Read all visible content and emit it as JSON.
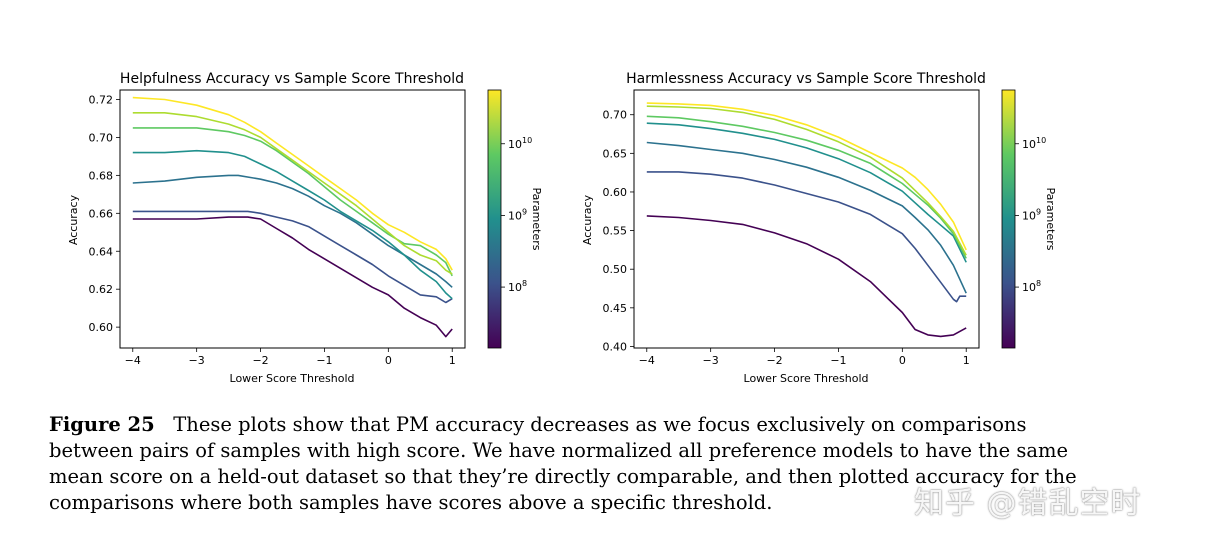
{
  "chart_data": [
    {
      "type": "line",
      "title": "Helpfulness Accuracy vs Sample Score Threshold",
      "xlabel": "Lower Score Threshold",
      "ylabel": "Accuracy",
      "xlim": [
        -4.2,
        1.2
      ],
      "ylim": [
        0.589,
        0.725
      ],
      "xticks": [
        -4,
        -3,
        -2,
        -1,
        0,
        1
      ],
      "yticks": [
        0.6,
        0.62,
        0.64,
        0.66,
        0.68,
        0.7,
        0.72
      ],
      "series": [
        {
          "color": "#440154",
          "x": [
            -4,
            -3.5,
            -3,
            -2.5,
            -2.2,
            -2,
            -1.75,
            -1.5,
            -1.25,
            -1,
            -0.75,
            -0.5,
            -0.25,
            0,
            0.25,
            0.5,
            0.75,
            0.9,
            1
          ],
          "y": [
            0.657,
            0.657,
            0.657,
            0.658,
            0.658,
            0.657,
            0.652,
            0.647,
            0.641,
            0.636,
            0.631,
            0.626,
            0.621,
            0.617,
            0.61,
            0.605,
            0.601,
            0.595,
            0.599
          ]
        },
        {
          "color": "#3b528b",
          "x": [
            -4,
            -3.5,
            -3,
            -2.5,
            -2.2,
            -2,
            -1.75,
            -1.5,
            -1.25,
            -1,
            -0.75,
            -0.5,
            -0.25,
            0,
            0.25,
            0.5,
            0.75,
            0.9,
            1
          ],
          "y": [
            0.661,
            0.661,
            0.661,
            0.661,
            0.661,
            0.66,
            0.658,
            0.656,
            0.653,
            0.648,
            0.643,
            0.638,
            0.633,
            0.627,
            0.622,
            0.617,
            0.616,
            0.613,
            0.615
          ]
        },
        {
          "color": "#2c728e",
          "x": [
            -4,
            -3.5,
            -3,
            -2.5,
            -2.35,
            -2,
            -1.75,
            -1.5,
            -1.25,
            -1,
            -0.75,
            -0.5,
            -0.25,
            0,
            0.25,
            0.5,
            0.75,
            0.9,
            1
          ],
          "y": [
            0.676,
            0.677,
            0.679,
            0.68,
            0.68,
            0.678,
            0.676,
            0.673,
            0.669,
            0.664,
            0.66,
            0.655,
            0.649,
            0.643,
            0.638,
            0.633,
            0.628,
            0.624,
            0.621
          ]
        },
        {
          "color": "#21908d",
          "x": [
            -4,
            -3.5,
            -3,
            -2.5,
            -2.25,
            -2,
            -1.75,
            -1.5,
            -1.25,
            -1,
            -0.75,
            -0.5,
            -0.25,
            0,
            0.25,
            0.5,
            0.75,
            0.9,
            1
          ],
          "y": [
            0.692,
            0.692,
            0.693,
            0.692,
            0.69,
            0.686,
            0.682,
            0.677,
            0.672,
            0.667,
            0.661,
            0.656,
            0.651,
            0.645,
            0.638,
            0.63,
            0.624,
            0.618,
            0.615
          ]
        },
        {
          "color": "#5ec962",
          "x": [
            -4,
            -3.5,
            -3,
            -2.5,
            -2.25,
            -2,
            -1.75,
            -1.5,
            -1.25,
            -1,
            -0.75,
            -0.5,
            -0.25,
            0,
            0.25,
            0.5,
            0.75,
            0.9,
            1
          ],
          "y": [
            0.705,
            0.705,
            0.705,
            0.703,
            0.701,
            0.698,
            0.693,
            0.687,
            0.681,
            0.674,
            0.667,
            0.661,
            0.655,
            0.649,
            0.644,
            0.643,
            0.638,
            0.634,
            0.627
          ]
        },
        {
          "color": "#addc30",
          "x": [
            -4,
            -3.5,
            -3,
            -2.5,
            -2.25,
            -2,
            -1.75,
            -1.5,
            -1.25,
            -1,
            -0.75,
            -0.5,
            -0.25,
            0,
            0.25,
            0.5,
            0.75,
            0.9,
            1
          ],
          "y": [
            0.713,
            0.713,
            0.711,
            0.707,
            0.704,
            0.7,
            0.694,
            0.688,
            0.682,
            0.676,
            0.67,
            0.664,
            0.657,
            0.65,
            0.643,
            0.638,
            0.635,
            0.63,
            0.628
          ]
        },
        {
          "color": "#fde725",
          "x": [
            -4,
            -3.5,
            -3,
            -2.5,
            -2.25,
            -2,
            -1.75,
            -1.5,
            -1.25,
            -1,
            -0.75,
            -0.5,
            -0.25,
            0,
            0.25,
            0.5,
            0.75,
            0.9,
            1
          ],
          "y": [
            0.721,
            0.72,
            0.717,
            0.712,
            0.708,
            0.703,
            0.697,
            0.691,
            0.685,
            0.679,
            0.673,
            0.667,
            0.66,
            0.654,
            0.65,
            0.645,
            0.641,
            0.636,
            0.63
          ]
        }
      ]
    },
    {
      "type": "line",
      "title": "Harmlessness Accuracy vs Sample Score Threshold",
      "xlabel": "Lower Score Threshold",
      "ylabel": "Accuracy",
      "xlim": [
        -4.2,
        1.2
      ],
      "ylim": [
        0.398,
        0.732
      ],
      "xticks": [
        -4,
        -3,
        -2,
        -1,
        0,
        1
      ],
      "yticks": [
        0.4,
        0.45,
        0.5,
        0.55,
        0.6,
        0.65,
        0.7
      ],
      "series": [
        {
          "color": "#440154",
          "x": [
            -4,
            -3.5,
            -3,
            -2.5,
            -2,
            -1.5,
            -1,
            -0.5,
            0,
            0.2,
            0.4,
            0.6,
            0.8,
            1
          ],
          "y": [
            0.569,
            0.567,
            0.563,
            0.558,
            0.547,
            0.533,
            0.513,
            0.484,
            0.444,
            0.422,
            0.415,
            0.413,
            0.415,
            0.424
          ]
        },
        {
          "color": "#3b528b",
          "x": [
            -4,
            -3.5,
            -3,
            -2.5,
            -2,
            -1.5,
            -1,
            -0.5,
            0,
            0.2,
            0.4,
            0.6,
            0.8,
            0.85,
            0.9,
            1
          ],
          "y": [
            0.626,
            0.626,
            0.623,
            0.618,
            0.609,
            0.598,
            0.587,
            0.571,
            0.546,
            0.527,
            0.505,
            0.483,
            0.461,
            0.458,
            0.465,
            0.465
          ]
        },
        {
          "color": "#2c728e",
          "x": [
            -4,
            -3.5,
            -3,
            -2.5,
            -2,
            -1.5,
            -1,
            -0.5,
            0,
            0.2,
            0.4,
            0.6,
            0.8,
            1
          ],
          "y": [
            0.664,
            0.66,
            0.655,
            0.65,
            0.642,
            0.632,
            0.619,
            0.602,
            0.582,
            0.567,
            0.551,
            0.531,
            0.505,
            0.469
          ]
        },
        {
          "color": "#21908d",
          "x": [
            -4,
            -3.5,
            -3,
            -2.5,
            -2,
            -1.5,
            -1,
            -0.5,
            0,
            0.2,
            0.4,
            0.6,
            0.8,
            1
          ],
          "y": [
            0.689,
            0.687,
            0.682,
            0.676,
            0.668,
            0.657,
            0.643,
            0.625,
            0.601,
            0.586,
            0.571,
            0.557,
            0.543,
            0.509
          ]
        },
        {
          "color": "#5ec962",
          "x": [
            -4,
            -3.5,
            -3,
            -2.5,
            -2,
            -1.5,
            -1,
            -0.5,
            0,
            0.2,
            0.4,
            0.6,
            0.8,
            1
          ],
          "y": [
            0.698,
            0.696,
            0.691,
            0.685,
            0.677,
            0.667,
            0.654,
            0.637,
            0.611,
            0.597,
            0.583,
            0.566,
            0.546,
            0.514
          ]
        },
        {
          "color": "#addc30",
          "x": [
            -4,
            -3.5,
            -3,
            -2.5,
            -2,
            -1.5,
            -1,
            -0.5,
            0,
            0.2,
            0.4,
            0.6,
            0.8,
            1
          ],
          "y": [
            0.711,
            0.71,
            0.708,
            0.703,
            0.694,
            0.681,
            0.665,
            0.645,
            0.618,
            0.602,
            0.586,
            0.568,
            0.549,
            0.518
          ]
        },
        {
          "color": "#fde725",
          "x": [
            -4,
            -3.5,
            -3,
            -2.5,
            -2,
            -1.5,
            -1,
            -0.5,
            0,
            0.2,
            0.4,
            0.6,
            0.8,
            1
          ],
          "y": [
            0.715,
            0.714,
            0.712,
            0.707,
            0.699,
            0.687,
            0.671,
            0.651,
            0.631,
            0.619,
            0.603,
            0.584,
            0.561,
            0.525
          ]
        }
      ]
    }
  ],
  "colorbar": {
    "label": "Parameters",
    "ticks": [
      {
        "base": "10",
        "exp": "10",
        "log": 10
      },
      {
        "base": "10",
        "exp": "9",
        "log": 9
      },
      {
        "base": "10",
        "exp": "8",
        "log": 8
      }
    ],
    "log_range": [
      7.15,
      10.75
    ],
    "stops": [
      "#440154",
      "#3b528b",
      "#21908d",
      "#5ec962",
      "#fde725"
    ]
  },
  "caption": {
    "label": "Figure 25",
    "text": "These plots show that PM accuracy decreases as we focus exclusively on comparisons between pairs of samples with high score. We have normalized all preference models to have the same mean score on a held-out dataset so that they’re directly comparable, and then plotted accuracy for the comparisons where both samples have scores above a specific threshold."
  },
  "watermark": "知乎 @错乱空时"
}
